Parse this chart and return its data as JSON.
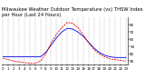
{
  "title": "Milwaukee Weather Outdoor Temperature (vs) THSW Index per Hour (Last 24 Hours)",
  "background_color": "#ffffff",
  "plot_bg_color": "#ffffff",
  "grid_color": "#999999",
  "x_hours": [
    0,
    1,
    2,
    3,
    4,
    5,
    6,
    7,
    8,
    9,
    10,
    11,
    12,
    13,
    14,
    15,
    16,
    17,
    18,
    19,
    20,
    21,
    22,
    23
  ],
  "blue_temp": [
    36,
    36,
    36,
    36,
    36,
    36,
    36,
    36,
    42,
    52,
    62,
    70,
    75,
    74,
    70,
    64,
    56,
    48,
    42,
    38,
    36,
    35,
    35,
    35
  ],
  "red_thsw": [
    34,
    32,
    30,
    29,
    28,
    27,
    27,
    30,
    40,
    55,
    67,
    76,
    83,
    82,
    76,
    66,
    55,
    46,
    40,
    36,
    33,
    32,
    31,
    30
  ],
  "blue_color": "#0000dd",
  "red_color": "#dd0000",
  "ymin": 25,
  "ymax": 90,
  "ytick_values": [
    30,
    40,
    50,
    60,
    70,
    80
  ],
  "title_fontsize": 3.8,
  "tick_fontsize": 3.0,
  "linewidth": 0.6,
  "grid_linewidth": 0.35,
  "figwidth": 1.6,
  "figheight": 0.87,
  "dpi": 100
}
